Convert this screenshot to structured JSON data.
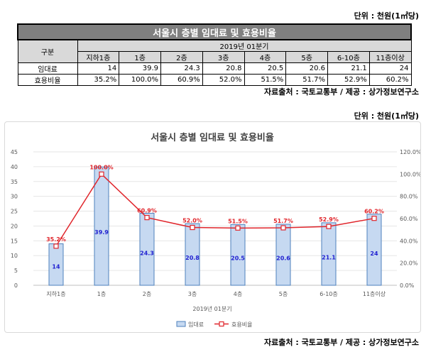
{
  "table": {
    "unit": "단위 : 천원(1㎡당)",
    "title": "서울시 층별 임대료 및 효용비율",
    "row_header": "구분",
    "period": "2019년 01분기",
    "columns": [
      "지하1층",
      "1층",
      "2층",
      "3층",
      "4층",
      "5층",
      "6-10층",
      "11층이상"
    ],
    "rows": [
      {
        "label": "임대료",
        "cells": [
          "14",
          "39.9",
          "24.3",
          "20.8",
          "20.5",
          "20.6",
          "21.1",
          "24"
        ]
      },
      {
        "label": "효용비율",
        "cells": [
          "35.2%",
          "100.0%",
          "60.9%",
          "52.0%",
          "51.5%",
          "51.7%",
          "52.9%",
          "60.2%"
        ]
      }
    ],
    "source": "자료출처 : 국토교통부 / 제공 : 상가정보연구소"
  },
  "chart_unit": "단위 : 천원(1㎡당)",
  "chart_source": "자료출처 : 국토교통부 / 제공 : 상가정보연구소",
  "colors": {
    "bar_fill": "#c6d9f1",
    "bar_stroke": "#4f81bd",
    "line": "#e0252b",
    "bar_label": "#1f1fd1"
  },
  "chart_data": {
    "type": "bar",
    "title": "서울시 층별 임대료 및 효용비율",
    "categories": [
      "지하1층",
      "1층",
      "2층",
      "3층",
      "4층",
      "5층",
      "6-10층",
      "11층이상"
    ],
    "xlabel": "2019년 01분기",
    "series": [
      {
        "name": "임대료",
        "type": "bar",
        "axis": "left",
        "values": [
          14,
          39.9,
          24.3,
          20.8,
          20.5,
          20.6,
          21.1,
          24
        ],
        "labels": [
          "14",
          "39.9",
          "24.3",
          "20.8",
          "20.5",
          "20.6",
          "21.1",
          "24"
        ]
      },
      {
        "name": "효용비율",
        "type": "line",
        "axis": "right",
        "values": [
          35.2,
          100.0,
          60.9,
          52.0,
          51.5,
          51.7,
          52.9,
          60.2
        ],
        "labels": [
          "35.2%",
          "100.0%",
          "60.9%",
          "52.0%",
          "51.5%",
          "51.7%",
          "52.9%",
          "60.2%"
        ]
      }
    ],
    "y_left": {
      "min": 0,
      "max": 45,
      "ticks": [
        "0",
        "5",
        "10",
        "15",
        "20",
        "25",
        "30",
        "35",
        "40",
        "45"
      ]
    },
    "y_right": {
      "min": 0,
      "max": 120,
      "ticks": [
        "0.0%",
        "20.0%",
        "40.0%",
        "60.0%",
        "80.0%",
        "100.0%",
        "120.0%"
      ]
    },
    "legend": [
      "임대료",
      "효용비율"
    ],
    "legend_position": "bottom"
  }
}
